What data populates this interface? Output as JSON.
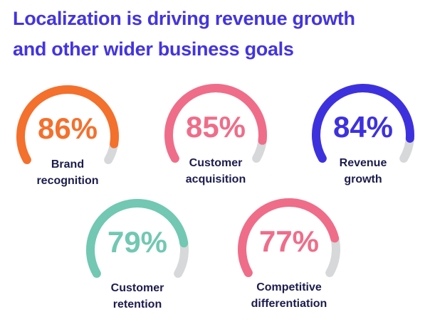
{
  "title": {
    "line1": "Localization is driving revenue growth",
    "line2": "and other wider business goals",
    "color": "#4334e0"
  },
  "chart_data": {
    "type": "gauge",
    "title": "Localization is driving revenue growth and other wider business goals",
    "unit": "percent",
    "range": [
      0,
      100
    ],
    "track_color": "#d6d8da",
    "label_color": "#1b1c4d",
    "gauges": [
      {
        "label": "Brand\nrecognition",
        "value": 86,
        "display": "86%",
        "color": "#f4702d"
      },
      {
        "label": "Customer\nacquisition",
        "value": 85,
        "display": "85%",
        "color": "#ef6d89"
      },
      {
        "label": "Revenue\ngrowth",
        "value": 84,
        "display": "84%",
        "color": "#3d31de"
      },
      {
        "label": "Customer\nretention",
        "value": 79,
        "display": "79%",
        "color": "#72c8b2"
      },
      {
        "label": "Competitive\ndifferentiation",
        "value": 77,
        "display": "77%",
        "color": "#ef6d89"
      }
    ]
  }
}
